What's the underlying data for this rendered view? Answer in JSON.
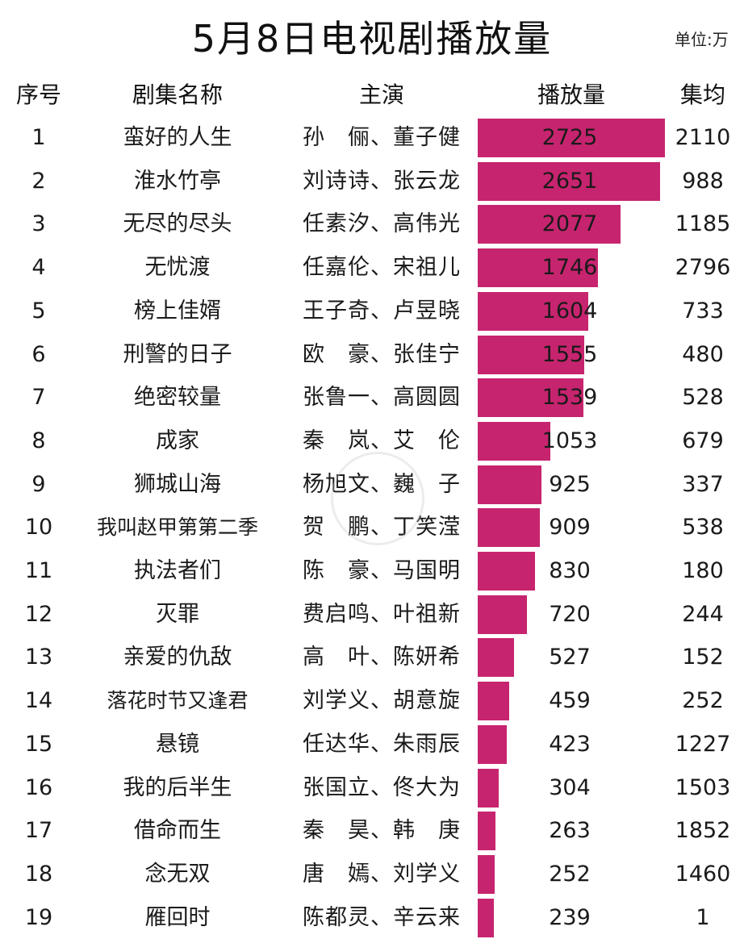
{
  "title": "5月8日电视剧播放量",
  "unit": "单位:万",
  "headers": {
    "rank": "序号",
    "name": "剧集名称",
    "actors": "主演",
    "views": "播放量",
    "avg": "集均"
  },
  "colors": {
    "bar": "#c7246f"
  },
  "chart_data": {
    "type": "bar",
    "title": "5月8日电视剧播放量",
    "unit": "单位:万",
    "xlim": [
      0,
      2725
    ],
    "rows": [
      {
        "rank": "1",
        "name": "蛮好的人生",
        "actors": "孙　俪、董子健",
        "views": 2725,
        "avg": "2110"
      },
      {
        "rank": "2",
        "name": "淮水竹亭",
        "actors": "刘诗诗、张云龙",
        "views": 2651,
        "avg": "988"
      },
      {
        "rank": "3",
        "name": "无尽的尽头",
        "actors": "任素汐、高伟光",
        "views": 2077,
        "avg": "1185"
      },
      {
        "rank": "4",
        "name": "无忧渡",
        "actors": "任嘉伦、宋祖儿",
        "views": 1746,
        "avg": "2796"
      },
      {
        "rank": "5",
        "name": "榜上佳婿",
        "actors": "王子奇、卢昱晓",
        "views": 1604,
        "avg": "733"
      },
      {
        "rank": "6",
        "name": "刑警的日子",
        "actors": "欧　豪、张佳宁",
        "views": 1555,
        "avg": "480"
      },
      {
        "rank": "7",
        "name": "绝密较量",
        "actors": "张鲁一、高圆圆",
        "views": 1539,
        "avg": "528"
      },
      {
        "rank": "8",
        "name": "成家",
        "actors": "秦　岚、艾　伦",
        "views": 1053,
        "avg": "679"
      },
      {
        "rank": "9",
        "name": "狮城山海",
        "actors": "杨旭文、巍　子",
        "views": 925,
        "avg": "337"
      },
      {
        "rank": "10",
        "name": "我叫赵甲第第二季",
        "actors": "贺　鹏、丁笑滢",
        "views": 909,
        "avg": "538"
      },
      {
        "rank": "11",
        "name": "执法者们",
        "actors": "陈　豪、马国明",
        "views": 830,
        "avg": "180"
      },
      {
        "rank": "12",
        "name": "灭罪",
        "actors": "费启鸣、叶祖新",
        "views": 720,
        "avg": "244"
      },
      {
        "rank": "13",
        "name": "亲爱的仇敌",
        "actors": "高　叶、陈妍希",
        "views": 527,
        "avg": "152"
      },
      {
        "rank": "14",
        "name": "落花时节又逢君",
        "actors": "刘学义、胡意旋",
        "views": 459,
        "avg": "252"
      },
      {
        "rank": "15",
        "name": "悬镜",
        "actors": "任达华、朱雨辰",
        "views": 423,
        "avg": "1227"
      },
      {
        "rank": "16",
        "name": "我的后半生",
        "actors": "张国立、佟大为",
        "views": 304,
        "avg": "1503"
      },
      {
        "rank": "17",
        "name": "借命而生",
        "actors": "秦　昊、韩　庚",
        "views": 263,
        "avg": "1852"
      },
      {
        "rank": "18",
        "name": "念无双",
        "actors": "唐　嫣、刘学义",
        "views": 252,
        "avg": "1460"
      },
      {
        "rank": "19",
        "name": "雁回时",
        "actors": "陈都灵、辛云来",
        "views": 239,
        "avg": "1"
      }
    ]
  }
}
